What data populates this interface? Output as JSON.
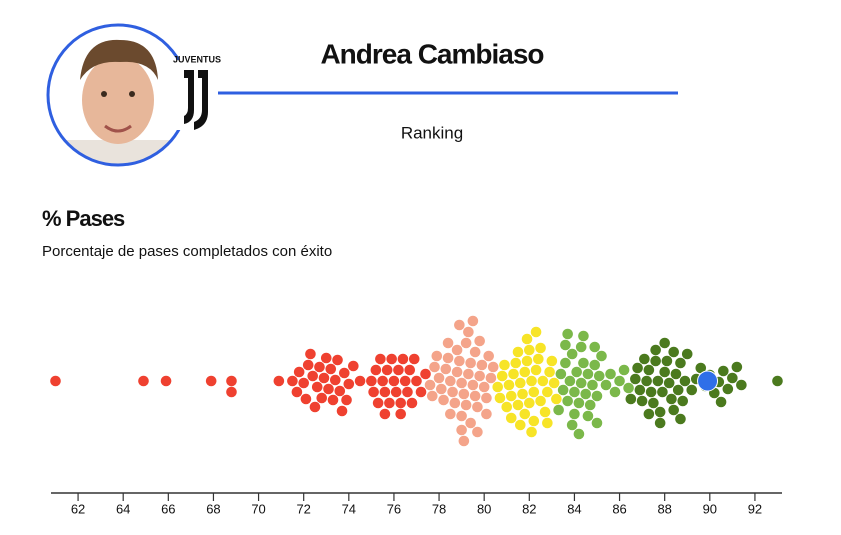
{
  "header": {
    "player": "Andrea Cambiaso",
    "club_logo_text": "JUVENTUS",
    "subtitle": "Ranking"
  },
  "chart_data": {
    "type": "beeswarm",
    "title": "% Pases",
    "subtitle": "Porcentaje de pases completados con éxito",
    "xlim": [
      60.8,
      93.2
    ],
    "xticks": [
      62,
      64,
      66,
      68,
      70,
      72,
      74,
      76,
      78,
      80,
      82,
      84,
      86,
      88,
      90,
      92
    ],
    "series": [
      {
        "color": "#ef4130",
        "values": [
          61.0,
          64.9,
          65.9,
          67.9,
          68.8,
          68.8,
          70.9,
          71.5,
          71.7,
          71.8,
          72.0,
          72.1,
          72.2,
          72.3,
          72.4,
          72.6,
          72.7,
          72.8,
          72.9,
          73.0,
          73.1,
          73.2,
          73.3,
          73.4,
          73.5,
          73.6,
          73.8,
          73.9,
          74.0,
          74.2,
          74.5,
          75.0,
          75.1,
          75.2,
          75.3,
          75.4,
          75.5,
          75.6,
          75.7,
          75.8,
          75.9,
          76.0,
          76.1,
          76.2,
          76.3,
          76.4,
          76.5,
          76.6,
          76.7,
          76.8,
          76.9,
          77.0,
          77.2,
          77.4,
          75.6,
          76.3,
          72.5,
          73.7
        ]
      },
      {
        "color": "#f4a48a",
        "values": [
          77.6,
          77.7,
          77.8,
          77.9,
          78.0,
          78.1,
          78.2,
          78.3,
          78.4,
          78.5,
          78.6,
          78.7,
          78.8,
          78.9,
          79.0,
          79.1,
          79.2,
          79.3,
          79.4,
          79.5,
          79.6,
          79.7,
          79.8,
          79.9,
          80.0,
          80.1,
          80.2,
          80.3,
          80.4,
          78.5,
          78.8,
          79.0,
          79.2,
          79.4,
          79.6,
          79.8,
          79.0,
          79.3,
          78.9,
          79.7,
          80.1,
          78.4,
          79.1,
          79.5
        ]
      },
      {
        "color": "#f7e427",
        "values": [
          80.6,
          80.7,
          80.8,
          80.9,
          81.0,
          81.1,
          81.2,
          81.3,
          81.4,
          81.5,
          81.6,
          81.7,
          81.8,
          81.9,
          82.0,
          82.1,
          82.2,
          82.3,
          82.4,
          82.5,
          82.6,
          82.7,
          82.8,
          82.9,
          83.0,
          83.1,
          83.2,
          81.5,
          81.8,
          82.0,
          82.2,
          82.5,
          81.2,
          82.8,
          81.9,
          82.3,
          81.6,
          82.1
        ]
      },
      {
        "color": "#7bb84a",
        "values": [
          83.3,
          83.4,
          83.5,
          83.6,
          83.7,
          83.8,
          83.9,
          84.0,
          84.1,
          84.2,
          84.3,
          84.4,
          84.5,
          84.6,
          84.7,
          84.8,
          84.9,
          85.0,
          85.1,
          85.2,
          85.4,
          85.6,
          85.8,
          86.0,
          86.2,
          86.4,
          83.6,
          84.0,
          84.3,
          84.6,
          84.9,
          83.9,
          84.4,
          84.2,
          85.0,
          83.7
        ]
      },
      {
        "color": "#4b7a1e",
        "values": [
          86.5,
          86.7,
          86.8,
          86.9,
          87.0,
          87.1,
          87.2,
          87.3,
          87.4,
          87.5,
          87.6,
          87.7,
          87.8,
          87.9,
          88.0,
          88.1,
          88.2,
          88.3,
          88.4,
          88.5,
          88.6,
          88.7,
          88.8,
          88.9,
          89.0,
          89.2,
          89.4,
          89.6,
          89.8,
          90.0,
          90.2,
          90.4,
          90.6,
          90.8,
          91.0,
          91.2,
          91.4,
          87.3,
          87.6,
          88.0,
          88.4,
          87.8,
          88.7,
          90.5,
          93.0
        ]
      },
      {
        "color": "#2f6fe8",
        "highlight": true,
        "values": [
          89.9
        ]
      }
    ]
  }
}
